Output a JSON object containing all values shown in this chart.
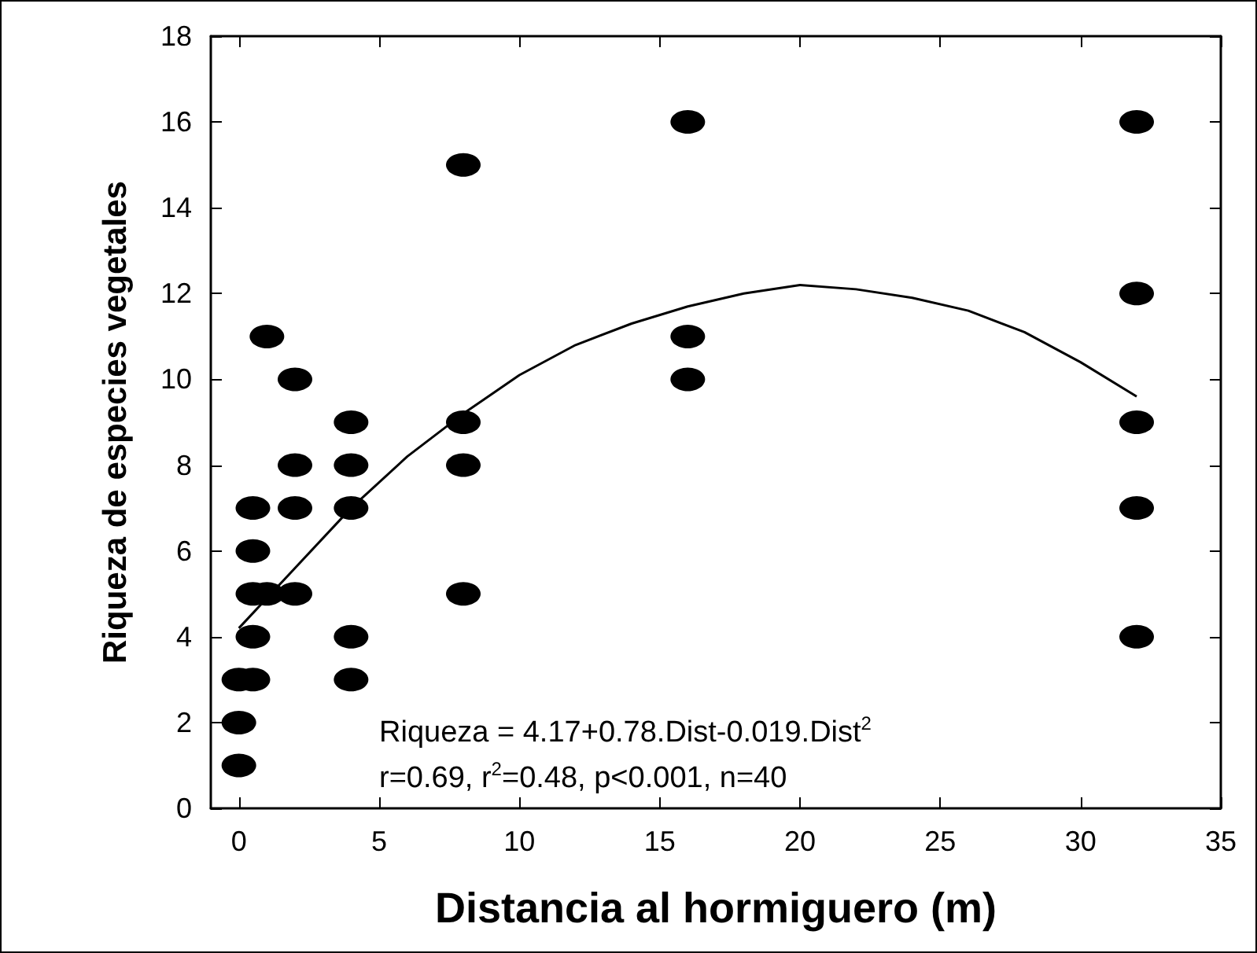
{
  "chart_data": {
    "type": "scatter",
    "xlabel": "Distancia al hormiguero (m)",
    "ylabel": "Riqueza de especies vegetales",
    "annotations": [
      "Riqueza = 4.17+0.78.Dist-0.019.Dist$^{2}$",
      "r=0.69, r$^{2}$=0.48, p<0.001, n=40"
    ],
    "series": [
      {
        "color": "#000000",
        "x": [
          0,
          0,
          0,
          0.5,
          0.5,
          0.5,
          0.5,
          0.5,
          1,
          1,
          2,
          2,
          2,
          2,
          4,
          4,
          4,
          4,
          4,
          8,
          8,
          8,
          8,
          16,
          16,
          16,
          32,
          32,
          32,
          32,
          32
        ],
        "values": [
          1,
          2,
          3,
          3,
          4,
          5,
          6,
          7,
          5,
          11,
          5,
          7,
          8,
          10,
          3,
          4,
          7,
          8,
          9,
          5,
          8,
          9,
          15,
          10,
          11,
          16,
          4,
          7,
          9,
          12,
          16
        ],
        "marker": "circle"
      },
      {
        "type": "line",
        "color": "#000000",
        "x": [
          0,
          2,
          4,
          6,
          8,
          10,
          12,
          14,
          16,
          18,
          20,
          22,
          24,
          26,
          28,
          30,
          32
        ],
        "values": [
          4.2,
          5.6,
          7.0,
          8.2,
          9.2,
          10.1,
          10.8,
          11.3,
          11.7,
          12.0,
          12.2,
          12.1,
          11.9,
          11.6,
          11.1,
          10.4,
          9.6
        ],
        "marker": "none",
        "line_style": "solid"
      }
    ],
    "xlim": [
      -1,
      35
    ],
    "xticks": [
      0,
      5,
      10,
      15,
      20,
      25,
      30,
      35
    ],
    "ylim": [
      0,
      18
    ],
    "yticks": [
      0,
      2,
      4,
      6,
      8,
      10,
      12,
      14,
      16,
      18
    ],
    "grid": false
  }
}
